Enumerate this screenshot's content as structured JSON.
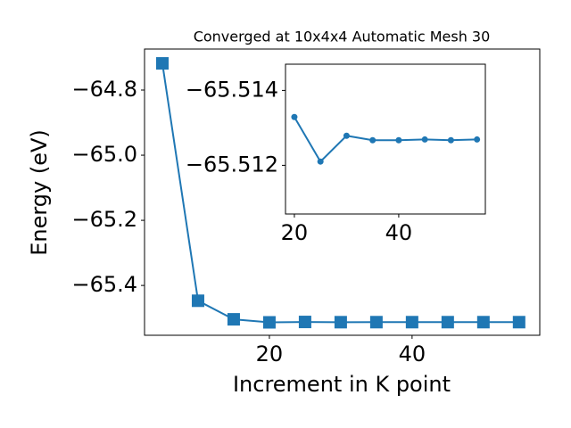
{
  "chart_data": [
    {
      "type": "line",
      "title": "Converged at 10x4x4 Automatic Mesh 30",
      "x_label": "Increment in K point",
      "y_label": "Energy (eV)",
      "x": [
        5,
        10,
        15,
        20,
        25,
        30,
        35,
        40,
        45,
        50,
        55
      ],
      "series": [
        {
          "color": "#1f77b4",
          "marker": "square",
          "values": [
            -64.718,
            -65.447,
            -65.504,
            -65.5133,
            -65.5121,
            -65.5128,
            -65.5127,
            -65.5127,
            -65.5127,
            -65.5127,
            -65.5127
          ]
        }
      ],
      "xlim": [
        2.5,
        57.9
      ],
      "ylim": [
        -65.553,
        -64.674
      ],
      "xticks": [
        20,
        40
      ],
      "yticks": [
        {
          "value": -64.8,
          "label": "−64.8"
        },
        {
          "value": -65.0,
          "label": "−65.0"
        },
        {
          "value": -65.2,
          "label": "−65.2"
        },
        {
          "value": -65.4,
          "label": "−65.4"
        }
      ]
    },
    {
      "type": "line",
      "x": [
        20,
        25,
        30,
        35,
        40,
        45,
        50,
        55
      ],
      "series": [
        {
          "color": "#1f77b4",
          "marker": "circle",
          "values": [
            -65.51329,
            -65.5121,
            -65.51279,
            -65.51267,
            -65.51267,
            -65.51269,
            -65.51267,
            -65.51269
          ]
        }
      ],
      "xlim": [
        18.3,
        56.6
      ],
      "ylim": [
        -65.5107,
        -65.5147
      ],
      "xticks": [
        20,
        40
      ],
      "yticks": [
        {
          "value": -65.514,
          "label": "−65.514"
        },
        {
          "value": -65.512,
          "label": "−65.512"
        }
      ]
    }
  ]
}
